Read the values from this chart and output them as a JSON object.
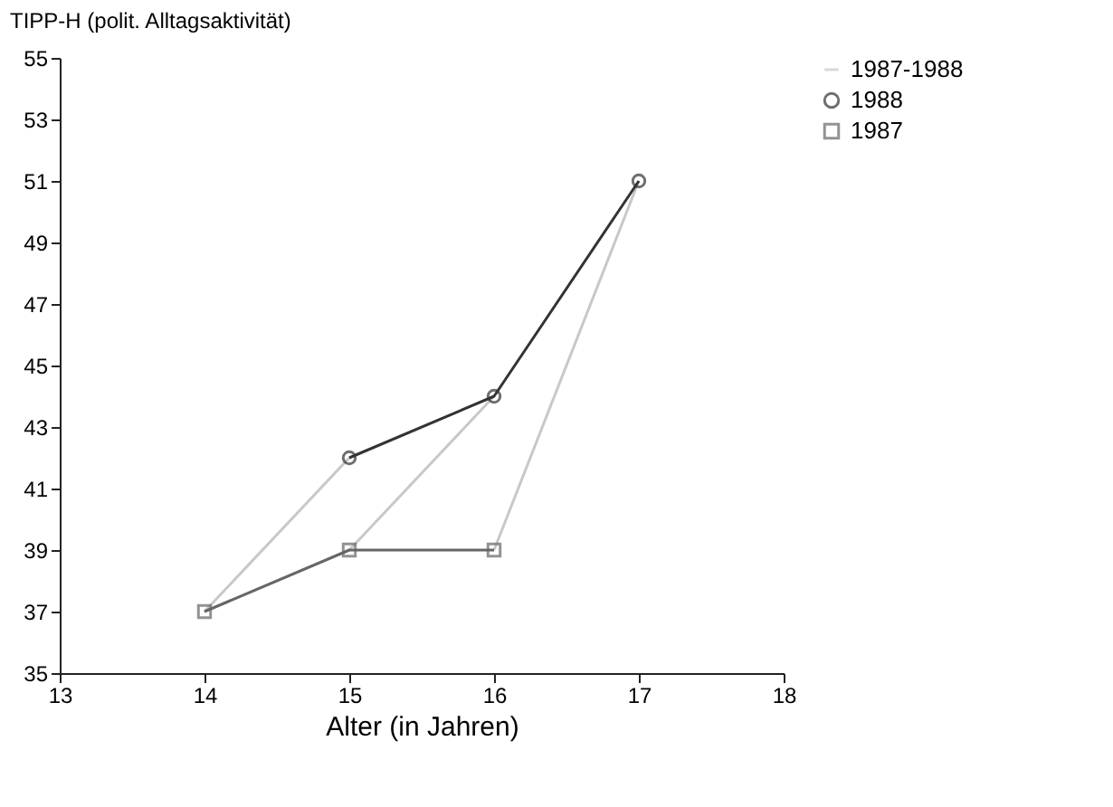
{
  "chart_data": {
    "type": "line",
    "ylabel": "TIPP-H (polit. Alltagsaktivität)",
    "xlabel": "Alter (in Jahren)",
    "xlim": [
      13,
      18
    ],
    "xticks": [
      13,
      14,
      15,
      16,
      17,
      18
    ],
    "ylim": [
      35,
      55
    ],
    "yticks": [
      35,
      37,
      39,
      41,
      43,
      45,
      47,
      49,
      51,
      53,
      55
    ],
    "grid": false,
    "legend": "top right",
    "series": [
      {
        "name": "1987-1988",
        "color": "#c8c8c8",
        "marker": "none",
        "x": [
          14,
          15
        ],
        "values": [
          37,
          42
        ]
      },
      {
        "color": "#c8c8c8",
        "marker": "none",
        "x": [
          15,
          16
        ],
        "values": [
          39,
          44
        ]
      },
      {
        "color": "#c8c8c8",
        "marker": "none",
        "x": [
          16,
          17
        ],
        "values": [
          39,
          51
        ]
      },
      {
        "name": "1988",
        "color": "#333333",
        "marker": "circle",
        "x": [
          15,
          16,
          17
        ],
        "values": [
          42,
          44,
          51
        ]
      },
      {
        "name": "1987",
        "color": "#666666",
        "marker": "square",
        "x": [
          14,
          15,
          16
        ],
        "values": [
          37,
          39,
          39
        ]
      }
    ]
  }
}
